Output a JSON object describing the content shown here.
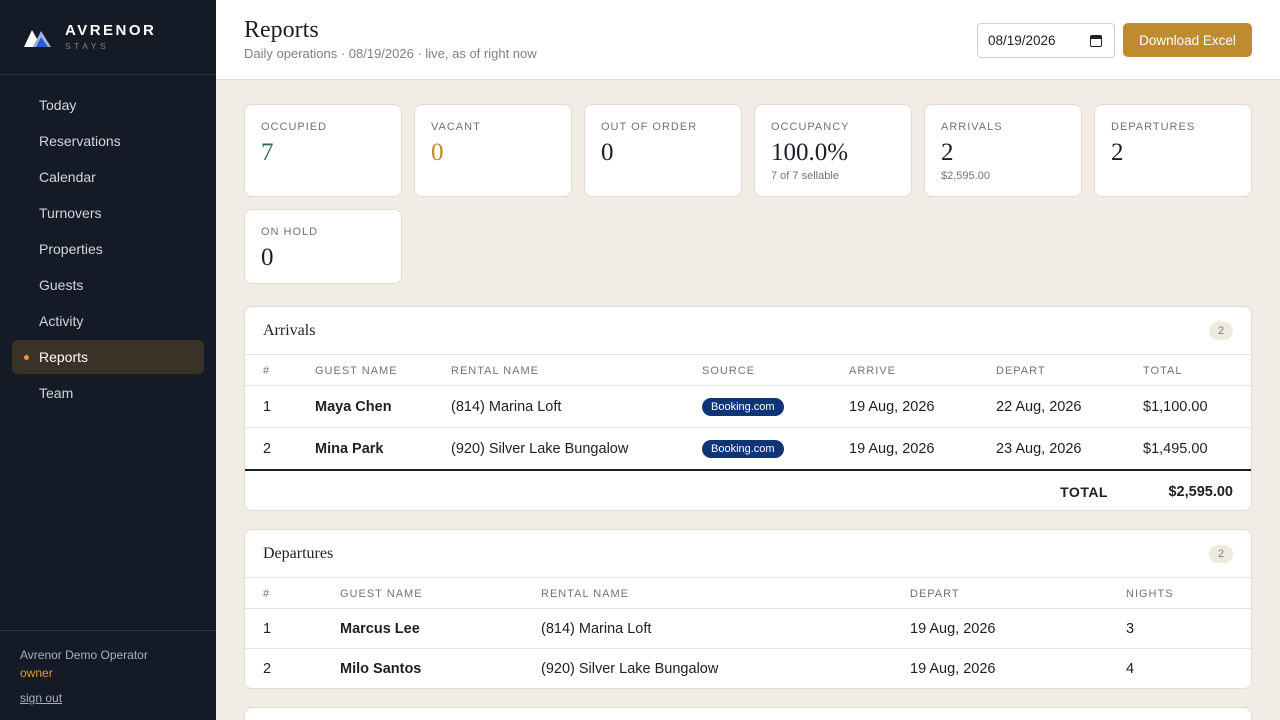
{
  "brand": {
    "name": "AVRENOR",
    "tagline": "STAYS"
  },
  "nav": [
    {
      "label": "Today"
    },
    {
      "label": "Reservations"
    },
    {
      "label": "Calendar"
    },
    {
      "label": "Turnovers"
    },
    {
      "label": "Properties"
    },
    {
      "label": "Guests"
    },
    {
      "label": "Activity"
    },
    {
      "label": "Reports",
      "active": true
    },
    {
      "label": "Team"
    }
  ],
  "user": {
    "name": "Avrenor Demo Operator",
    "role": "owner",
    "signout": "sign out"
  },
  "header": {
    "title": "Reports",
    "subtitle": "Daily operations · 08/19/2026 · live, as of right now",
    "date_value": "08/19/2026",
    "download_label": "Download Excel"
  },
  "stats": [
    {
      "label": "OCCUPIED",
      "value": "7",
      "color": "#2f6e4f"
    },
    {
      "label": "VACANT",
      "value": "0",
      "color": "#c08a2f"
    },
    {
      "label": "OUT OF ORDER",
      "value": "0"
    },
    {
      "label": "OCCUPANCY",
      "value": "100.0%",
      "sub": "7 of 7 sellable"
    },
    {
      "label": "ARRIVALS",
      "value": "2",
      "sub": "$2,595.00"
    },
    {
      "label": "DEPARTURES",
      "value": "2"
    },
    {
      "label": "ON HOLD",
      "value": "0"
    }
  ],
  "arrivals": {
    "title": "Arrivals",
    "count": "2",
    "columns": [
      "#",
      "GUEST NAME",
      "RENTAL NAME",
      "SOURCE",
      "ARRIVE",
      "DEPART",
      "TOTAL"
    ],
    "rows": [
      {
        "num": "1",
        "guest": "Maya Chen",
        "rental": "(814) Marina Loft",
        "source": "Booking.com",
        "arrive": "19 Aug, 2026",
        "depart": "22 Aug, 2026",
        "total": "$1,100.00"
      },
      {
        "num": "2",
        "guest": "Mina Park",
        "rental": "(920) Silver Lake Bungalow",
        "source": "Booking.com",
        "arrive": "19 Aug, 2026",
        "depart": "23 Aug, 2026",
        "total": "$1,495.00"
      }
    ],
    "total_label": "TOTAL",
    "total_value": "$2,595.00"
  },
  "departures": {
    "title": "Departures",
    "count": "2",
    "columns": [
      "#",
      "GUEST NAME",
      "RENTAL NAME",
      "DEPART",
      "NIGHTS"
    ],
    "rows": [
      {
        "num": "1",
        "guest": "Marcus Lee",
        "rental": "(814) Marina Loft",
        "depart": "19 Aug, 2026",
        "nights": "3"
      },
      {
        "num": "2",
        "guest": "Milo Santos",
        "rental": "(920) Silver Lake Bungalow",
        "depart": "19 Aug, 2026",
        "nights": "4"
      }
    ]
  }
}
